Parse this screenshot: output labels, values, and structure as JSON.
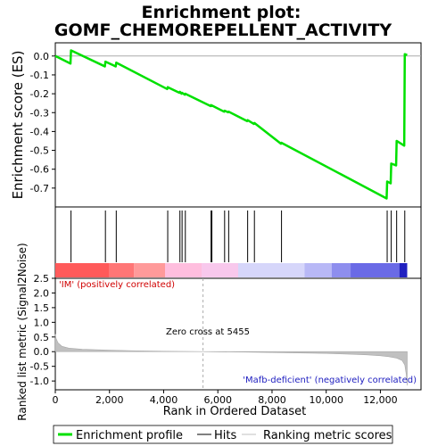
{
  "chart_data": {
    "type": "line",
    "title_line1": "Enrichment plot:",
    "title_line2": "GOMF_CHEMOREPELLENT_ACTIVITY",
    "xlabel": "Rank in Ordered Dataset",
    "ylabel_top": "Enrichment score (ES)",
    "ylabel_bottom": "Ranked list metric (Signal2Noise)",
    "xlim": [
      0,
      13500
    ],
    "x_ticks": [
      0,
      2000,
      4000,
      6000,
      8000,
      10000,
      12000
    ],
    "x_tick_labels": [
      "0",
      "2,000",
      "4,000",
      "6,000",
      "8,000",
      "10,000",
      "12,000"
    ],
    "es_ylim": [
      -0.8,
      0.07
    ],
    "es_ticks": [
      0.0,
      -0.1,
      -0.2,
      -0.3,
      -0.4,
      -0.5,
      -0.6,
      -0.7
    ],
    "es_tick_labels": [
      "0.0",
      "-0.1",
      "-0.2",
      "-0.3",
      "-0.4",
      "-0.5",
      "-0.6",
      "-0.7"
    ],
    "metric_ylim": [
      -1.3,
      2.5
    ],
    "metric_ticks": [
      2.5,
      2.0,
      1.5,
      1.0,
      0.5,
      0.0,
      -0.5,
      -1.0
    ],
    "metric_tick_labels": [
      "2.5",
      "2.0",
      "1.5",
      "1.0",
      "0.5",
      "0.0",
      "-0.5",
      "-1.0"
    ],
    "hits": [
      580,
      1850,
      2250,
      4150,
      4600,
      4680,
      4800,
      5750,
      5780,
      6250,
      6400,
      7100,
      7350,
      8350,
      12250,
      12400,
      12600,
      12900
    ],
    "series": [
      {
        "name": "Enrichment profile",
        "color": "#00e000",
        "x": [
          0,
          560,
          580,
          1830,
          1850,
          2230,
          2250,
          4130,
          4150,
          4580,
          4600,
          4660,
          4680,
          4780,
          4800,
          5730,
          5750,
          5760,
          5780,
          6230,
          6250,
          6380,
          6400,
          7080,
          7100,
          7330,
          7350,
          8330,
          8350,
          12230,
          12250,
          12380,
          12400,
          12580,
          12600,
          12880,
          12900,
          12990
        ],
        "y": [
          0.0,
          -0.04,
          0.03,
          -0.055,
          -0.03,
          -0.055,
          -0.035,
          -0.175,
          -0.165,
          -0.195,
          -0.19,
          -0.2,
          -0.195,
          -0.205,
          -0.2,
          -0.265,
          -0.26,
          -0.265,
          -0.262,
          -0.295,
          -0.29,
          -0.298,
          -0.295,
          -0.345,
          -0.34,
          -0.36,
          -0.355,
          -0.465,
          -0.46,
          -0.755,
          -0.665,
          -0.675,
          -0.57,
          -0.58,
          -0.45,
          -0.475,
          0.01,
          0.005
        ]
      }
    ],
    "metric_profile": {
      "name": "Ranking metric scores",
      "color": "#c0c0c0",
      "x": [
        0,
        30,
        100,
        250,
        500,
        1000,
        2000,
        3000,
        4000,
        5000,
        5455,
        6000,
        7000,
        8000,
        9000,
        10000,
        10500,
        11000,
        11500,
        12000,
        12300,
        12600,
        12800,
        12900,
        12950,
        12990
      ],
      "y": [
        0.6,
        0.45,
        0.3,
        0.18,
        0.12,
        0.08,
        0.05,
        0.03,
        0.015,
        0.005,
        0.0,
        -0.005,
        -0.015,
        -0.03,
        -0.045,
        -0.06,
        -0.075,
        -0.09,
        -0.11,
        -0.14,
        -0.17,
        -0.22,
        -0.3,
        -0.45,
        -0.75,
        -1.15
      ]
    },
    "zero_cross_label": "Zero cross at 5455",
    "zero_cross_x": 5455,
    "pos_label": "'IM' (positively correlated)",
    "neg_label": "'Mafb-deficient' (negatively correlated)",
    "colorbar": [
      {
        "from": 0,
        "to": 2000,
        "color": "#ff5a5a"
      },
      {
        "from": 2000,
        "to": 2900,
        "color": "#ff7676"
      },
      {
        "from": 2900,
        "to": 4050,
        "color": "#ff9a9a"
      },
      {
        "from": 4050,
        "to": 5400,
        "color": "#ffbede"
      },
      {
        "from": 5400,
        "to": 6750,
        "color": "#f8c8ec"
      },
      {
        "from": 6750,
        "to": 9200,
        "color": "#d6d6fa"
      },
      {
        "from": 9200,
        "to": 10200,
        "color": "#b8b8f6"
      },
      {
        "from": 10200,
        "to": 10900,
        "color": "#8e8eee"
      },
      {
        "from": 10900,
        "to": 12700,
        "color": "#6a6ae6"
      },
      {
        "from": 12700,
        "to": 12990,
        "color": "#2020c0"
      }
    ],
    "legend": [
      {
        "label": "Enrichment profile",
        "color": "#00e000"
      },
      {
        "label": "Hits",
        "color": "#000000"
      },
      {
        "label": "Ranking metric scores",
        "color": "#c0c0c0"
      }
    ]
  }
}
